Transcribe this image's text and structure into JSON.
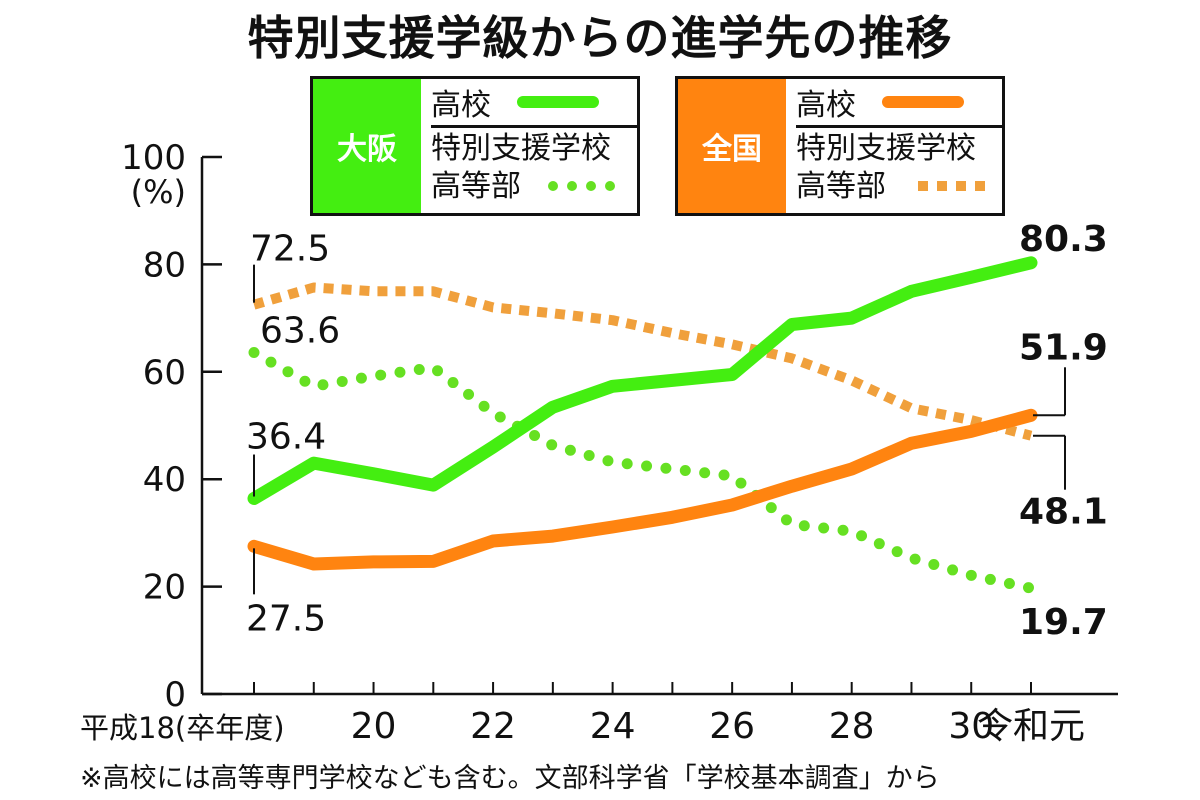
{
  "chart_data": {
    "type": "line",
    "title": "特別支援学級からの進学先の推移",
    "xlabel": "",
    "ylabel": "(%)",
    "ylim": [
      0,
      100
    ],
    "yticks": [
      "0",
      "20",
      "40",
      "60",
      "80",
      "100"
    ],
    "ytick_values": [
      0,
      20,
      40,
      60,
      80,
      100
    ],
    "y_unit": "(%)",
    "x": [
      "H18",
      "H19",
      "H20",
      "H21",
      "H22",
      "H23",
      "H24",
      "H25",
      "H26",
      "H27",
      "H28",
      "H29",
      "H30",
      "R1"
    ],
    "xtick_labels": [
      {
        "index": 0,
        "label": "平成18(卒年度)"
      },
      {
        "index": 2,
        "label": "20"
      },
      {
        "index": 4,
        "label": "22"
      },
      {
        "index": 6,
        "label": "24"
      },
      {
        "index": 8,
        "label": "26"
      },
      {
        "index": 10,
        "label": "28"
      },
      {
        "index": 12,
        "label": "30"
      },
      {
        "index": 13,
        "label": "令和元"
      }
    ],
    "grid": false,
    "series": [
      {
        "name": "大阪 高校",
        "region": "大阪",
        "kind": "高校",
        "style": "solid",
        "color": "#44EE11",
        "values": [
          36.4,
          43.0,
          41.0,
          38.9,
          46.0,
          53.4,
          57.3,
          58.4,
          59.5,
          68.8,
          70.0,
          75.0,
          77.6,
          80.3
        ]
      },
      {
        "name": "大阪 特別支援学校高等部",
        "region": "大阪",
        "kind": "特別支援学校高等部",
        "style": "dotted",
        "color": "#66E022",
        "values": [
          63.6,
          57.3,
          59.2,
          60.8,
          52.3,
          46.3,
          43.2,
          41.9,
          40.6,
          31.6,
          30.3,
          25.3,
          22.1,
          19.7
        ]
      },
      {
        "name": "全国 高校",
        "region": "全国",
        "kind": "高校",
        "style": "solid",
        "color": "#FF8410",
        "values": [
          27.5,
          24.2,
          24.6,
          24.7,
          28.5,
          29.4,
          31.1,
          32.9,
          35.2,
          38.7,
          41.9,
          46.7,
          48.9,
          51.9
        ]
      },
      {
        "name": "全国 特別支援学校高等部",
        "region": "全国",
        "kind": "特別支援学校高等部",
        "style": "dashed",
        "color": "#F0A03C",
        "values": [
          72.5,
          75.7,
          75.0,
          75.0,
          72.0,
          70.9,
          69.6,
          67.2,
          65.1,
          62.5,
          58.4,
          53.2,
          51.0,
          48.1
        ]
      }
    ],
    "annotations": [
      {
        "text": "72.5",
        "series": 3,
        "index": 0
      },
      {
        "text": "63.6",
        "series": 1,
        "index": 0
      },
      {
        "text": "36.4",
        "series": 0,
        "index": 0
      },
      {
        "text": "27.5",
        "series": 2,
        "index": 0
      },
      {
        "text": "80.3",
        "series": 0,
        "index": 13
      },
      {
        "text": "51.9",
        "series": 2,
        "index": 13
      },
      {
        "text": "48.1",
        "series": 3,
        "index": 13
      },
      {
        "text": "19.7",
        "series": 1,
        "index": 13
      }
    ],
    "legend": {
      "placement": "top",
      "groups": [
        {
          "label": "大阪",
          "color": "#44EE11",
          "solid_label": "高校",
          "dotted_label_1": "特別支援学校",
          "dotted_label_2": "高等部"
        },
        {
          "label": "全国",
          "color": "#FF8410",
          "solid_label": "高校",
          "dotted_label_1": "特別支援学校",
          "dotted_label_2": "高等部"
        }
      ]
    },
    "footnote": "※高校には高等専門学校なども含む。文部科学省「学校基本調査」から"
  }
}
